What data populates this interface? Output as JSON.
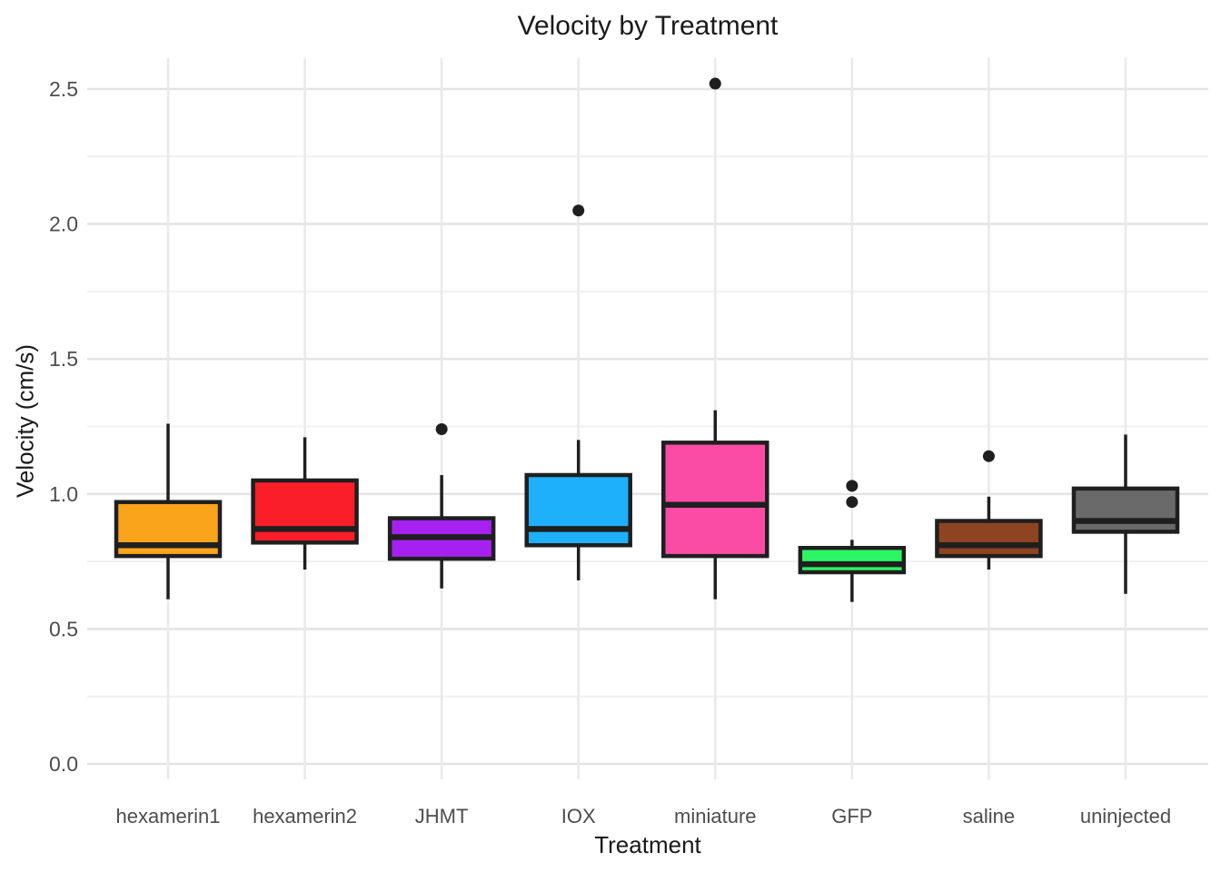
{
  "chart_data": {
    "type": "boxplot",
    "title": "Velocity by Treatment",
    "xlabel": "Treatment",
    "ylabel": "Velocity (cm/s)",
    "ylim": [
      0.0,
      2.6
    ],
    "yticks": [
      0.0,
      0.5,
      1.0,
      1.5,
      2.0,
      2.5
    ],
    "yminor": [
      0.25,
      0.75,
      1.25,
      1.75,
      2.25
    ],
    "grid": "horizontal major+minor, vertical line at each category",
    "legend": "none",
    "categories": [
      "hexamerin1",
      "hexamerin2",
      "JHMT",
      "IOX",
      "miniature",
      "GFP",
      "saline",
      "uninjected"
    ],
    "series": [
      {
        "name": "hexamerin1",
        "color": "#FAA41B",
        "whisker_low": 0.61,
        "q1": 0.77,
        "median": 0.81,
        "q3": 0.97,
        "whisker_high": 1.26,
        "outliers": []
      },
      {
        "name": "hexamerin2",
        "color": "#FA1E28",
        "whisker_low": 0.72,
        "q1": 0.82,
        "median": 0.87,
        "q3": 1.05,
        "whisker_high": 1.21,
        "outliers": []
      },
      {
        "name": "JHMT",
        "color": "#A621F0",
        "whisker_low": 0.65,
        "q1": 0.76,
        "median": 0.84,
        "q3": 0.91,
        "whisker_high": 1.07,
        "outliers": [
          1.24
        ]
      },
      {
        "name": "IOX",
        "color": "#1FB0FB",
        "whisker_low": 0.68,
        "q1": 0.81,
        "median": 0.87,
        "q3": 1.07,
        "whisker_high": 1.2,
        "outliers": [
          2.05
        ]
      },
      {
        "name": "miniature",
        "color": "#FB4CA5",
        "whisker_low": 0.61,
        "q1": 0.77,
        "median": 0.96,
        "q3": 1.19,
        "whisker_high": 1.31,
        "outliers": [
          2.52
        ]
      },
      {
        "name": "GFP",
        "color": "#2BF765",
        "whisker_low": 0.6,
        "q1": 0.71,
        "median": 0.74,
        "q3": 0.8,
        "whisker_high": 0.83,
        "outliers": [
          0.97,
          1.03
        ]
      },
      {
        "name": "saline",
        "color": "#8E4421",
        "whisker_low": 0.72,
        "q1": 0.77,
        "median": 0.81,
        "q3": 0.9,
        "whisker_high": 0.99,
        "outliers": [
          1.14
        ]
      },
      {
        "name": "uninjected",
        "color": "#6A6A6A",
        "whisker_low": 0.63,
        "q1": 0.86,
        "median": 0.9,
        "q3": 1.02,
        "whisker_high": 1.22,
        "outliers": []
      }
    ],
    "style": {
      "box_border": "#1F1F1F",
      "median_color": "#1F1F1F",
      "outlier_color": "#1F1F1F",
      "grid_major": "#E4E4E4",
      "grid_minor": "#F0F0F0",
      "grid_vertical": "#EAEAEA",
      "tick_label_color": "#4D4D4D",
      "title_color": "#1A1A1A",
      "background": "#FFFFFF"
    }
  }
}
